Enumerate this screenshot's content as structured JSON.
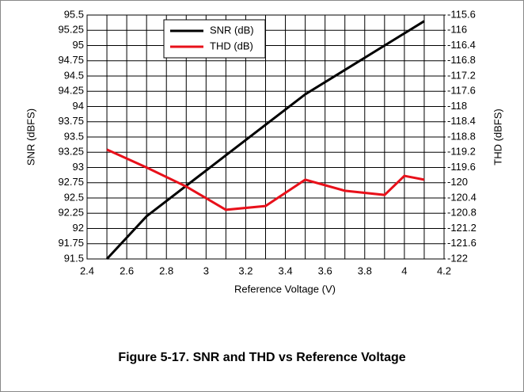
{
  "chart_data": {
    "type": "line",
    "caption": "Figure 5-17. SNR and THD vs Reference Voltage",
    "x_label": "Reference Voltage (V)",
    "y_label": "SNR (dBFS)",
    "y2_label": "THD (dBFS)",
    "x": [
      2.5,
      2.7,
      2.9,
      3.1,
      3.3,
      3.5,
      3.7,
      3.9,
      4.0,
      4.1
    ],
    "series": [
      {
        "name": "SNR (dB)",
        "color": "#000000",
        "values": [
          91.5,
          92.2,
          92.7,
          93.2,
          93.7,
          94.2,
          94.6,
          95.0,
          95.2,
          95.4
        ]
      },
      {
        "name": "THD (dB)",
        "color": "#e8101a",
        "axis": "y2",
        "values": [
          -119.13,
          -119.6,
          -120.1,
          -120.71,
          -120.61,
          -119.92,
          -120.21,
          -120.32,
          -119.82,
          -119.92
        ]
      }
    ],
    "xlim": [
      2.4,
      4.2
    ],
    "xticks": [
      2.4,
      2.6,
      2.8,
      3,
      3.2,
      3.4,
      3.6,
      3.8,
      4,
      4.2
    ],
    "x_minor_ticks": [
      2.5,
      2.7,
      2.9,
      3.1,
      3.3,
      3.5,
      3.7,
      3.9,
      4.1
    ],
    "ylim": [
      91.5,
      95.5
    ],
    "yticks": [
      91.5,
      91.75,
      92,
      92.25,
      92.5,
      92.75,
      93,
      93.25,
      93.5,
      93.75,
      94,
      94.25,
      94.5,
      94.75,
      95,
      95.25,
      95.5
    ],
    "y2lim": [
      -122,
      -115.6
    ],
    "y2ticks": [
      -122,
      -121.6,
      -121.2,
      -120.8,
      -120.4,
      -120,
      -119.6,
      -119.2,
      -118.8,
      -118.4,
      -118,
      -117.6,
      -117.2,
      -116.8,
      -116.4,
      -116,
      -115.6
    ],
    "grid": true,
    "legend": "top"
  }
}
